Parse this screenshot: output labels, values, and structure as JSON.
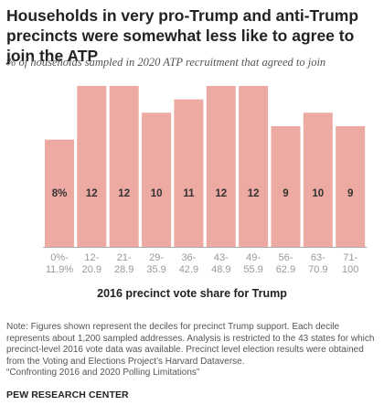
{
  "header": {
    "title": "Households in very pro-Trump and anti-Trump precincts were somewhat less like to agree to join the ATP",
    "subtitle": "% of households sampled in 2020 ATP recruitment that agreed to join"
  },
  "chart_data": {
    "type": "bar",
    "categories": [
      "0%-11.9%",
      "12-20.9",
      "21-28.9",
      "29-35.9",
      "36-42.9",
      "43-48.9",
      "49-55.9",
      "56-62.9",
      "63-70.9",
      "71-100"
    ],
    "category_lines": [
      [
        "0%-",
        "11.9%"
      ],
      [
        "12-",
        "20.9"
      ],
      [
        "21-",
        "28.9"
      ],
      [
        "29-",
        "35.9"
      ],
      [
        "36-",
        "42.9"
      ],
      [
        "43-",
        "48.9"
      ],
      [
        "49-",
        "55.9"
      ],
      [
        "56-",
        "62.9"
      ],
      [
        "63-",
        "70.9"
      ],
      [
        "71-",
        "100"
      ]
    ],
    "values": [
      8,
      12,
      12,
      10,
      11,
      12,
      12,
      9,
      10,
      9
    ],
    "data_labels": [
      "8%",
      "12",
      "12",
      "10",
      "11",
      "12",
      "12",
      "9",
      "10",
      "9"
    ],
    "xlabel": "2016 precinct vote share for Trump",
    "ylabel": "",
    "ylim": [
      0,
      12
    ],
    "grid": false,
    "legend": "none",
    "colors": {
      "bar": "#EDAAA3",
      "label": "#333333",
      "tick": "#999999",
      "baseline": "#AAAAAA"
    }
  },
  "footer": {
    "note_lines": [
      "Note: Figures shown represent the deciles for precinct Trump support. Each decile",
      "represents about 1,200 sampled addresses. Analysis is restricted to the 43 states for which",
      "precinct-level 2016 vote data was available. Precinct level election results were obtained",
      "from the Voting and Elections Project’s Harvard Dataverse.",
      "“Confronting 2016 and 2020 Polling Limitations”"
    ],
    "source": "PEW RESEARCH CENTER"
  }
}
